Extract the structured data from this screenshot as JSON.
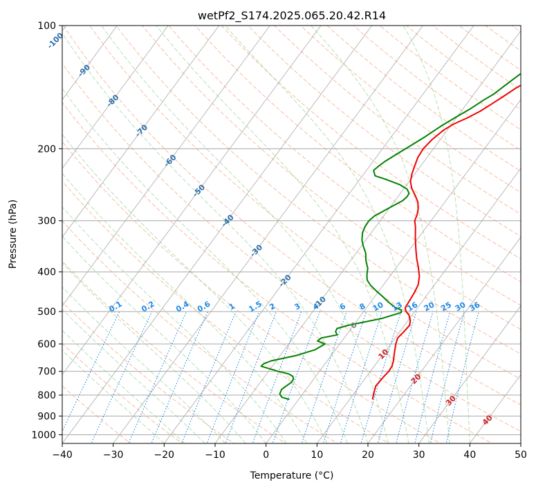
{
  "chart_data": {
    "type": "line",
    "title": "wetPf2_S174.2025.065.20.42.R14",
    "xlabel": "Temperature (°C)",
    "ylabel": "Pressure (hPa)",
    "xlim": [
      -40,
      50
    ],
    "ylim": [
      1050,
      100
    ],
    "y_scale": "log",
    "x_ticks": [
      -40,
      -30,
      -20,
      -10,
      0,
      10,
      20,
      30,
      40,
      50
    ],
    "y_ticks": [
      100,
      200,
      300,
      400,
      500,
      600,
      700,
      800,
      900,
      1000
    ],
    "grid": true,
    "series": [
      {
        "role": "temperature",
        "color": "#ee0000",
        "points": [
          [
            14.5,
            820
          ],
          [
            13.8,
            790
          ],
          [
            13.2,
            760
          ],
          [
            13.4,
            720
          ],
          [
            13.6,
            700
          ],
          [
            13.5,
            680
          ],
          [
            13.0,
            660
          ],
          [
            12.0,
            630
          ],
          [
            11.0,
            600
          ],
          [
            10.5,
            580
          ],
          [
            10.8,
            560
          ],
          [
            11.0,
            540
          ],
          [
            10.4,
            525
          ],
          [
            9.4,
            510
          ],
          [
            8.3,
            500
          ],
          [
            7.6,
            490
          ],
          [
            7.4,
            470
          ],
          [
            7.2,
            450
          ],
          [
            6.8,
            430
          ],
          [
            5.8,
            410
          ],
          [
            4.3,
            390
          ],
          [
            2.6,
            370
          ],
          [
            1.0,
            350
          ],
          [
            -0.6,
            330
          ],
          [
            -2.2,
            310
          ],
          [
            -3.2,
            300
          ],
          [
            -3.6,
            290
          ],
          [
            -4.3,
            280
          ],
          [
            -5.3,
            270
          ],
          [
            -6.8,
            260
          ],
          [
            -8.5,
            250
          ],
          [
            -9.8,
            240
          ],
          [
            -10.6,
            230
          ],
          [
            -11.2,
            220
          ],
          [
            -11.8,
            210
          ],
          [
            -12.0,
            200
          ],
          [
            -11.6,
            190
          ],
          [
            -10.7,
            180
          ],
          [
            -9.6,
            174
          ],
          [
            -7.8,
            168
          ],
          [
            -6.3,
            162
          ],
          [
            -5.0,
            155
          ],
          [
            -3.7,
            148
          ],
          [
            -2.6,
            142
          ],
          [
            -1.5,
            138
          ],
          [
            0.0,
            134
          ],
          [
            1.4,
            130
          ],
          [
            2.8,
            125
          ],
          [
            3.8,
            120
          ],
          [
            5.3,
            114
          ],
          [
            6.8,
            108
          ],
          [
            8.3,
            103
          ],
          [
            9.0,
            100
          ]
        ]
      },
      {
        "role": "dewpoint",
        "color": "#008000",
        "points": [
          [
            -1.8,
            820
          ],
          [
            -3.6,
            810
          ],
          [
            -4.5,
            795
          ],
          [
            -4.8,
            775
          ],
          [
            -4.4,
            760
          ],
          [
            -3.9,
            745
          ],
          [
            -4.0,
            730
          ],
          [
            -4.5,
            720
          ],
          [
            -5.7,
            710
          ],
          [
            -8.1,
            700
          ],
          [
            -12.2,
            680
          ],
          [
            -12.0,
            670
          ],
          [
            -11.0,
            660
          ],
          [
            -6.8,
            640
          ],
          [
            -4.0,
            620
          ],
          [
            -2.9,
            600
          ],
          [
            -4.8,
            590
          ],
          [
            -4.5,
            580
          ],
          [
            -1.8,
            570
          ],
          [
            -2.6,
            560
          ],
          [
            -2.8,
            550
          ],
          [
            -1.0,
            540
          ],
          [
            4.5,
            520
          ],
          [
            7.5,
            503
          ],
          [
            7.2,
            496
          ],
          [
            5.5,
            488
          ],
          [
            3.6,
            475
          ],
          [
            1.6,
            460
          ],
          [
            -0.4,
            446
          ],
          [
            -2.4,
            432
          ],
          [
            -3.9,
            419
          ],
          [
            -4.7,
            407
          ],
          [
            -5.5,
            392
          ],
          [
            -7.0,
            375
          ],
          [
            -8.1,
            360
          ],
          [
            -9.6,
            346
          ],
          [
            -10.7,
            335
          ],
          [
            -11.7,
            321
          ],
          [
            -12.1,
            310
          ],
          [
            -12.2,
            300
          ],
          [
            -11.8,
            292
          ],
          [
            -10.9,
            285
          ],
          [
            -9.8,
            277
          ],
          [
            -8.5,
            268
          ],
          [
            -8.2,
            262
          ],
          [
            -8.3,
            257
          ],
          [
            -9.3,
            251
          ],
          [
            -11.3,
            245
          ],
          [
            -14.7,
            238
          ],
          [
            -17.5,
            233
          ],
          [
            -18.6,
            226
          ],
          [
            -18.2,
            220
          ],
          [
            -17.7,
            215
          ],
          [
            -16.4,
            206
          ],
          [
            -15.0,
            197
          ],
          [
            -13.4,
            187
          ],
          [
            -11.8,
            176
          ],
          [
            -10.3,
            168
          ],
          [
            -8.6,
            160
          ],
          [
            -7.2,
            152
          ],
          [
            -6.1,
            147
          ],
          [
            -5.3,
            141
          ],
          [
            -4.4,
            135
          ],
          [
            -3.6,
            130
          ],
          [
            -2.7,
            125
          ],
          [
            -1.5,
            118
          ],
          [
            -0.3,
            112
          ],
          [
            0.8,
            106
          ],
          [
            1.7,
            100
          ]
        ]
      }
    ],
    "isotherm_labels": [
      "-100",
      "-90",
      "-80",
      "-70",
      "-60",
      "-50",
      "-40",
      "-30",
      "-20",
      "-10",
      "0",
      "10",
      "20",
      "30",
      "40"
    ],
    "mixing_ratio_labels": [
      "0.1",
      "0.2",
      "0.4",
      "0.6",
      "1",
      "1.5",
      "2",
      "3",
      "4",
      "6",
      "8",
      "10",
      "13",
      "16",
      "20",
      "25",
      "30",
      "36"
    ],
    "colors": {
      "isotherm_cold": "#2d6faa",
      "isotherm_zero": "#808080",
      "isotherm_warm": "#cc2222",
      "mixing_ratio": "#1e88e5",
      "dry_adiabat": "#f4a582",
      "moist_adiabat": "#74c476",
      "skew_isotherm": "#a8a8a8",
      "isobar": "#a8a8a8",
      "background": "#ffffff"
    }
  }
}
